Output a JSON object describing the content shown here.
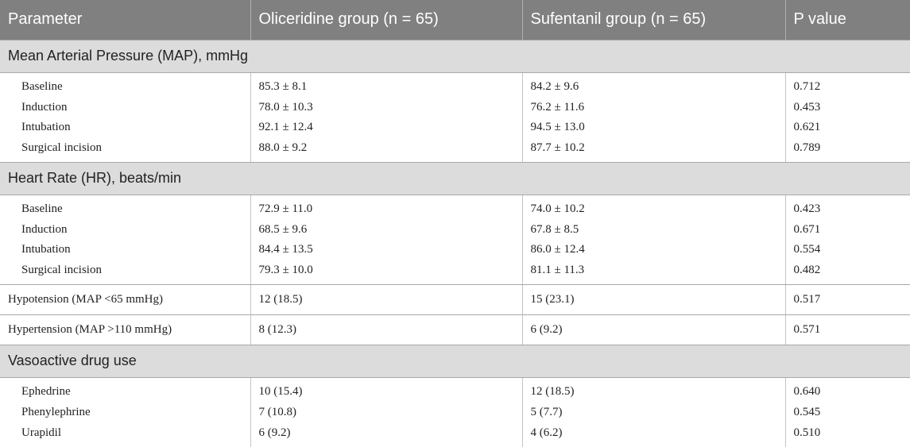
{
  "table": {
    "headers": [
      "Parameter",
      "Oliceridine group (n = 65)",
      "Sufentanil group (n = 65)",
      "P value"
    ],
    "sections": [
      {
        "title": "Mean Arterial Pressure (MAP), mmHg",
        "rows": [
          {
            "label": "Baseline",
            "oliceridine": "85.3 ± 8.1",
            "sufentanil": "84.2 ± 9.6",
            "p": "0.712"
          },
          {
            "label": "Induction",
            "oliceridine": "78.0 ± 10.3",
            "sufentanil": "76.2 ± 11.6",
            "p": "0.453"
          },
          {
            "label": "Intubation",
            "oliceridine": "92.1 ± 12.4",
            "sufentanil": "94.5 ± 13.0",
            "p": "0.621"
          },
          {
            "label": "Surgical incision",
            "oliceridine": "88.0 ± 9.2",
            "sufentanil": "87.7 ± 10.2",
            "p": "0.789"
          }
        ]
      },
      {
        "title": "Heart Rate (HR), beats/min",
        "rows": [
          {
            "label": "Baseline",
            "oliceridine": "72.9 ± 11.0",
            "sufentanil": "74.0 ± 10.2",
            "p": "0.423"
          },
          {
            "label": "Induction",
            "oliceridine": "68.5 ± 9.6",
            "sufentanil": "67.8 ± 8.5",
            "p": "0.671"
          },
          {
            "label": "Intubation",
            "oliceridine": "84.4 ± 13.5",
            "sufentanil": "86.0 ± 12.4",
            "p": "0.554"
          },
          {
            "label": "Surgical incision",
            "oliceridine": "79.3 ± 10.0",
            "sufentanil": "81.1 ± 11.3",
            "p": "0.482"
          }
        ]
      }
    ],
    "single_rows": [
      {
        "label": "Hypotension (MAP <65 mmHg)",
        "oliceridine": "12 (18.5)",
        "sufentanil": "15 (23.1)",
        "p": "0.517"
      },
      {
        "label": "Hypertension (MAP >110 mmHg)",
        "oliceridine": "8 (12.3)",
        "sufentanil": "6 (9.2)",
        "p": "0.571"
      }
    ],
    "vasoactive": {
      "title": "Vasoactive drug use",
      "rows": [
        {
          "label": "Ephedrine",
          "oliceridine": "10 (15.4)",
          "sufentanil": "12 (18.5)",
          "p": "0.640"
        },
        {
          "label": "Phenylephrine",
          "oliceridine": "7 (10.8)",
          "sufentanil": "5 (7.7)",
          "p": "0.545"
        },
        {
          "label": "Urapidil",
          "oliceridine": "6 (9.2)",
          "sufentanil": "4 (6.2)",
          "p": "0.510"
        }
      ]
    }
  }
}
